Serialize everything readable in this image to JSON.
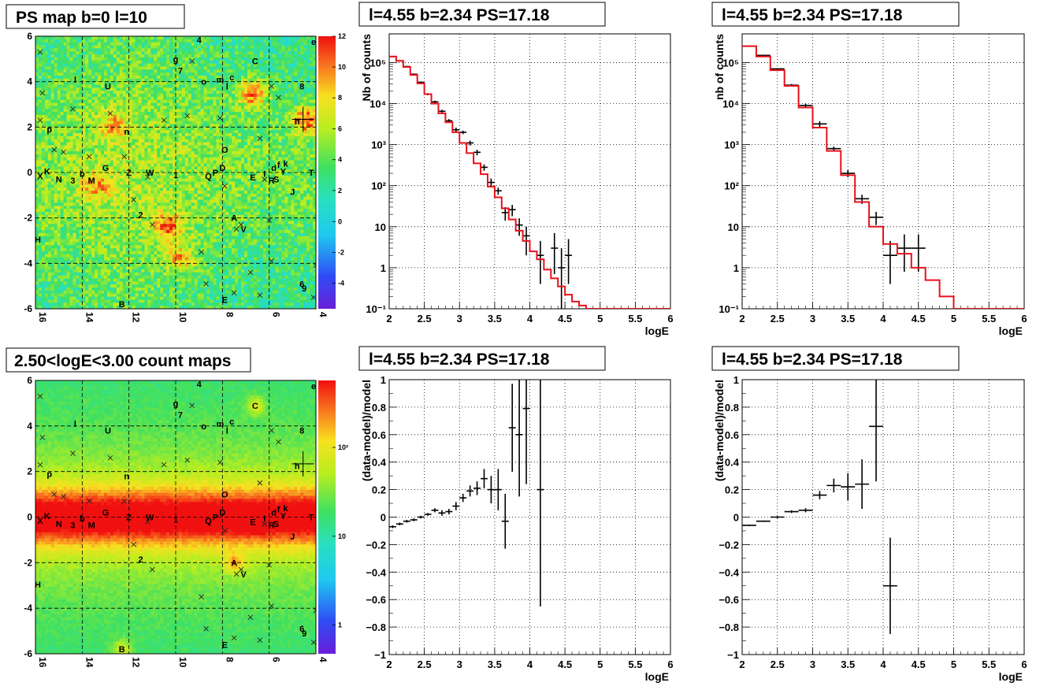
{
  "panels": {
    "psmap": {
      "title": "PS map b=0 l=10",
      "x_ticks": [
        "16",
        "14",
        "12",
        "10",
        "8",
        "6",
        "4"
      ],
      "y_ticks": [
        "6",
        "4",
        "2",
        "0",
        "-2",
        "-4",
        "-6"
      ],
      "colorbar_ticks": [
        "12",
        "10",
        "8",
        "6",
        "4",
        "2",
        "0",
        "-2",
        "-4"
      ]
    },
    "countmap": {
      "title": "2.50<logE<3.00 count maps",
      "x_ticks": [
        "16",
        "14",
        "12",
        "10",
        "8",
        "6",
        "4"
      ],
      "y_ticks": [
        "6",
        "4",
        "2",
        "0",
        "-2",
        "-4",
        "-6"
      ],
      "colorbar_ticks": [
        "10²",
        "10",
        "1"
      ]
    }
  },
  "sources": [
    {
      "label": "4",
      "l": 9.0,
      "b": 5.85
    },
    {
      "label": "e",
      "l": 4.1,
      "b": 5.75
    },
    {
      "label": "g",
      "l": 10.0,
      "b": 5.0
    },
    {
      "label": "7",
      "l": 9.8,
      "b": 4.5
    },
    {
      "label": "C",
      "l": 6.6,
      "b": 4.9
    },
    {
      "label": "8",
      "l": 4.6,
      "b": 3.8
    },
    {
      "label": "l",
      "l": 14.3,
      "b": 4.1
    },
    {
      "label": "U",
      "l": 12.9,
      "b": 3.8
    },
    {
      "label": "o",
      "l": 8.8,
      "b": 4.0
    },
    {
      "label": "m",
      "l": 8.1,
      "b": 4.1
    },
    {
      "label": "c",
      "l": 7.6,
      "b": 4.2
    },
    {
      "label": "l",
      "l": 7.8,
      "b": 3.8
    },
    {
      "label": "p",
      "l": 15.4,
      "b": 1.9
    },
    {
      "label": "n",
      "l": 12.1,
      "b": 1.8
    },
    {
      "label": "h",
      "l": 4.8,
      "b": 2.25
    },
    {
      "label": "O",
      "l": 7.9,
      "b": 1.0
    },
    {
      "label": "K",
      "l": 15.5,
      "b": 0.05
    },
    {
      "label": "X",
      "l": 15.8,
      "b": -0.15
    },
    {
      "label": "N",
      "l": 15.0,
      "b": -0.3
    },
    {
      "label": "b",
      "l": 14.0,
      "b": -0.05
    },
    {
      "label": "3",
      "l": 14.4,
      "b": -0.35
    },
    {
      "label": "M",
      "l": 13.6,
      "b": -0.35
    },
    {
      "label": "G",
      "l": 13.0,
      "b": 0.2
    },
    {
      "label": "Z",
      "l": 12.0,
      "b": 0.0
    },
    {
      "label": "W",
      "l": 11.1,
      "b": 0.0
    },
    {
      "label": "1",
      "l": 10.0,
      "b": -0.1
    },
    {
      "label": "Q",
      "l": 8.6,
      "b": -0.15
    },
    {
      "label": "P",
      "l": 8.3,
      "b": 0.0
    },
    {
      "label": "D",
      "l": 8.0,
      "b": 0.2
    },
    {
      "label": "d",
      "l": 5.8,
      "b": 0.2
    },
    {
      "label": "f",
      "l": 5.6,
      "b": 0.35
    },
    {
      "label": "k",
      "l": 5.3,
      "b": 0.4
    },
    {
      "label": "E",
      "l": 6.7,
      "b": -0.2
    },
    {
      "label": "I",
      "l": 6.2,
      "b": -0.05
    },
    {
      "label": "Y",
      "l": 5.4,
      "b": 0.05
    },
    {
      "label": "R",
      "l": 5.9,
      "b": -0.35
    },
    {
      "label": "S",
      "l": 5.7,
      "b": -0.3
    },
    {
      "label": "T",
      "l": 4.2,
      "b": 0.0
    },
    {
      "label": "J",
      "l": 5.0,
      "b": -0.85
    },
    {
      "label": "2",
      "l": 11.5,
      "b": -1.85
    },
    {
      "label": "A",
      "l": 7.5,
      "b": -2.0
    },
    {
      "label": "V",
      "l": 7.1,
      "b": -2.5
    },
    {
      "label": "H",
      "l": 15.9,
      "b": -2.95
    },
    {
      "label": "6",
      "l": 4.6,
      "b": -4.9
    },
    {
      "label": "9",
      "l": 4.5,
      "b": -5.1
    },
    {
      "label": "E",
      "l": 7.9,
      "b": -5.6
    },
    {
      "label": "B",
      "l": 12.3,
      "b": -5.8
    }
  ],
  "chart_data": [
    {
      "type": "heatmap",
      "title": "PS map b=0 l=10",
      "xlabel": "",
      "ylabel": "",
      "xlim": [
        16,
        4
      ],
      "ylim": [
        -6,
        6
      ],
      "zlim": [
        -5,
        12
      ],
      "colorscale": "rainbow",
      "hotspots": [
        {
          "l": 6.7,
          "b": 3.5,
          "value": 12
        },
        {
          "l": 4.4,
          "b": 2.3,
          "value": 12
        },
        {
          "l": 10.3,
          "b": -2.4,
          "value": 11
        },
        {
          "l": 9.8,
          "b": -3.8,
          "value": 10
        },
        {
          "l": 12.7,
          "b": 2.1,
          "value": 9
        },
        {
          "l": 13.4,
          "b": -0.6,
          "value": 9
        }
      ]
    },
    {
      "type": "bar",
      "title": "l=4.55 b=2.34 PS=17.18",
      "xlabel": "logE",
      "ylabel": "Nb of counts",
      "xlim": [
        2,
        6
      ],
      "ylim": [
        0.1,
        500000
      ],
      "yscale": "log",
      "grid": true,
      "series": [
        {
          "name": "",
          "style": "points",
          "x": [
            2.05,
            2.15,
            2.25,
            2.35,
            2.45,
            2.55,
            2.65,
            2.75,
            2.85,
            2.95,
            3.05,
            3.15,
            3.25,
            3.35,
            3.45,
            3.55,
            3.65,
            3.75,
            3.85,
            3.95,
            4.15,
            4.35,
            4.45,
            4.55
          ],
          "y": [
            140000,
            110000,
            80000,
            52000,
            33000,
            17000,
            11000,
            6500,
            3800,
            2300,
            2000,
            1100,
            650,
            280,
            120,
            75,
            22,
            26,
            11,
            6,
            2,
            3,
            1,
            2
          ],
          "y_err_low": [
            5000,
            4000,
            3000,
            2000,
            1500,
            1000,
            800,
            600,
            400,
            300,
            200,
            150,
            100,
            50,
            30,
            15,
            8,
            8,
            5,
            4,
            1.6,
            2.3,
            0.9,
            1.6
          ],
          "y_err_high": [
            5000,
            4000,
            3000,
            2000,
            1500,
            1000,
            800,
            600,
            400,
            300,
            200,
            150,
            100,
            50,
            30,
            15,
            8,
            8,
            5,
            4,
            2.5,
            4,
            2,
            3
          ]
        },
        {
          "name": "",
          "style": "step",
          "color": "#e8101a",
          "edges": [
            2.0,
            2.1,
            2.2,
            2.3,
            2.4,
            2.5,
            2.6,
            2.7,
            2.8,
            2.9,
            3.0,
            3.1,
            3.2,
            3.3,
            3.4,
            3.5,
            3.6,
            3.7,
            3.8,
            3.9,
            4.0,
            4.1,
            4.2,
            4.3,
            4.4,
            4.5,
            4.6,
            4.7,
            4.8,
            6.0
          ],
          "y": [
            140000,
            110000,
            78000,
            50000,
            31000,
            17000,
            10000,
            5800,
            3500,
            2000,
            1100,
            620,
            350,
            190,
            95,
            52,
            28,
            15,
            8,
            4.5,
            2.5,
            1.6,
            0.9,
            0.55,
            0.35,
            0.22,
            0.15,
            0.12,
            0.1
          ]
        }
      ]
    },
    {
      "type": "bar",
      "title": "l=4.55 b=2.34 PS=17.18",
      "xlabel": "logE",
      "ylabel": "nb of counts",
      "xlim": [
        2,
        6
      ],
      "ylim": [
        0.1,
        500000
      ],
      "yscale": "log",
      "grid": true,
      "series": [
        {
          "name": "",
          "style": "points",
          "x": [
            2.1,
            2.3,
            2.5,
            2.7,
            2.9,
            3.1,
            3.3,
            3.5,
            3.7,
            3.9,
            4.1,
            4.3,
            4.5
          ],
          "y": [
            250000,
            150000,
            70000,
            28000,
            9000,
            3200,
            800,
            200,
            48,
            17,
            2,
            3,
            3
          ],
          "y_err_low": [
            5000,
            4000,
            3000,
            2000,
            1000,
            500,
            100,
            40,
            12,
            6,
            1.6,
            2.2,
            2.2
          ],
          "y_err_high": [
            5000,
            4000,
            3000,
            2000,
            1000,
            500,
            100,
            40,
            12,
            6,
            2.5,
            3.5,
            3.5
          ]
        },
        {
          "name": "",
          "style": "step",
          "color": "#e8101a",
          "edges": [
            2.0,
            2.2,
            2.4,
            2.6,
            2.8,
            3.0,
            3.2,
            3.4,
            3.6,
            3.8,
            4.0,
            4.2,
            4.4,
            4.6,
            4.8,
            5.0,
            6.0
          ],
          "y": [
            250000,
            140000,
            65000,
            27000,
            8000,
            2600,
            700,
            180,
            40,
            10,
            3.8,
            2.2,
            1,
            0.5,
            0.2,
            0.1
          ]
        }
      ]
    },
    {
      "type": "heatmap",
      "title": "2.50<logE<3.00 count maps",
      "xlabel": "",
      "ylabel": "",
      "xlim": [
        16,
        4
      ],
      "ylim": [
        -6,
        6
      ],
      "zlim": [
        0.5,
        300
      ],
      "zscale": "log",
      "colorscale": "rainbow",
      "hotspots": [
        {
          "l": 6.6,
          "b": 4.9,
          "value": 150
        },
        {
          "l": 7.5,
          "b": -2.0,
          "value": 200
        },
        {
          "l": 12.3,
          "b": -5.8,
          "value": 120
        },
        {
          "l": 6.7,
          "b": -0.2,
          "value": 250
        }
      ]
    },
    {
      "type": "scatter",
      "title": "l=4.55 b=2.34 PS=17.18",
      "xlabel": "logE",
      "ylabel": "(data-model)/model",
      "xlim": [
        2,
        6
      ],
      "ylim": [
        -1,
        1
      ],
      "grid": true,
      "series": [
        {
          "name": "",
          "x": [
            2.05,
            2.15,
            2.25,
            2.35,
            2.45,
            2.55,
            2.65,
            2.75,
            2.85,
            2.95,
            3.05,
            3.15,
            3.25,
            3.35,
            3.45,
            3.55,
            3.65,
            3.75,
            3.85,
            3.95,
            4.15
          ],
          "y": [
            -0.07,
            -0.05,
            -0.03,
            -0.02,
            0.0,
            0.02,
            0.05,
            0.03,
            0.04,
            0.08,
            0.14,
            0.19,
            0.21,
            0.28,
            0.2,
            0.2,
            -0.03,
            0.65,
            0.6,
            0.79,
            0.2
          ],
          "y_err": [
            0.01,
            0.01,
            0.01,
            0.01,
            0.01,
            0.01,
            0.015,
            0.02,
            0.02,
            0.03,
            0.03,
            0.04,
            0.05,
            0.07,
            0.1,
            0.15,
            0.2,
            0.32,
            0.45,
            0.55,
            0.85
          ]
        }
      ]
    },
    {
      "type": "scatter",
      "title": "l=4.55 b=2.34 PS=17.18",
      "xlabel": "logE",
      "ylabel": "(data-model)/model",
      "xlim": [
        2,
        6
      ],
      "ylim": [
        -1,
        1
      ],
      "grid": true,
      "series": [
        {
          "name": "",
          "x": [
            2.1,
            2.3,
            2.5,
            2.7,
            2.9,
            3.1,
            3.3,
            3.5,
            3.7,
            3.9,
            4.1
          ],
          "y": [
            -0.06,
            -0.03,
            0.0,
            0.04,
            0.05,
            0.16,
            0.23,
            0.22,
            0.24,
            0.66,
            -0.5
          ],
          "y_err": [
            0.005,
            0.005,
            0.008,
            0.01,
            0.015,
            0.03,
            0.05,
            0.1,
            0.18,
            0.4,
            0.35
          ]
        }
      ]
    }
  ]
}
